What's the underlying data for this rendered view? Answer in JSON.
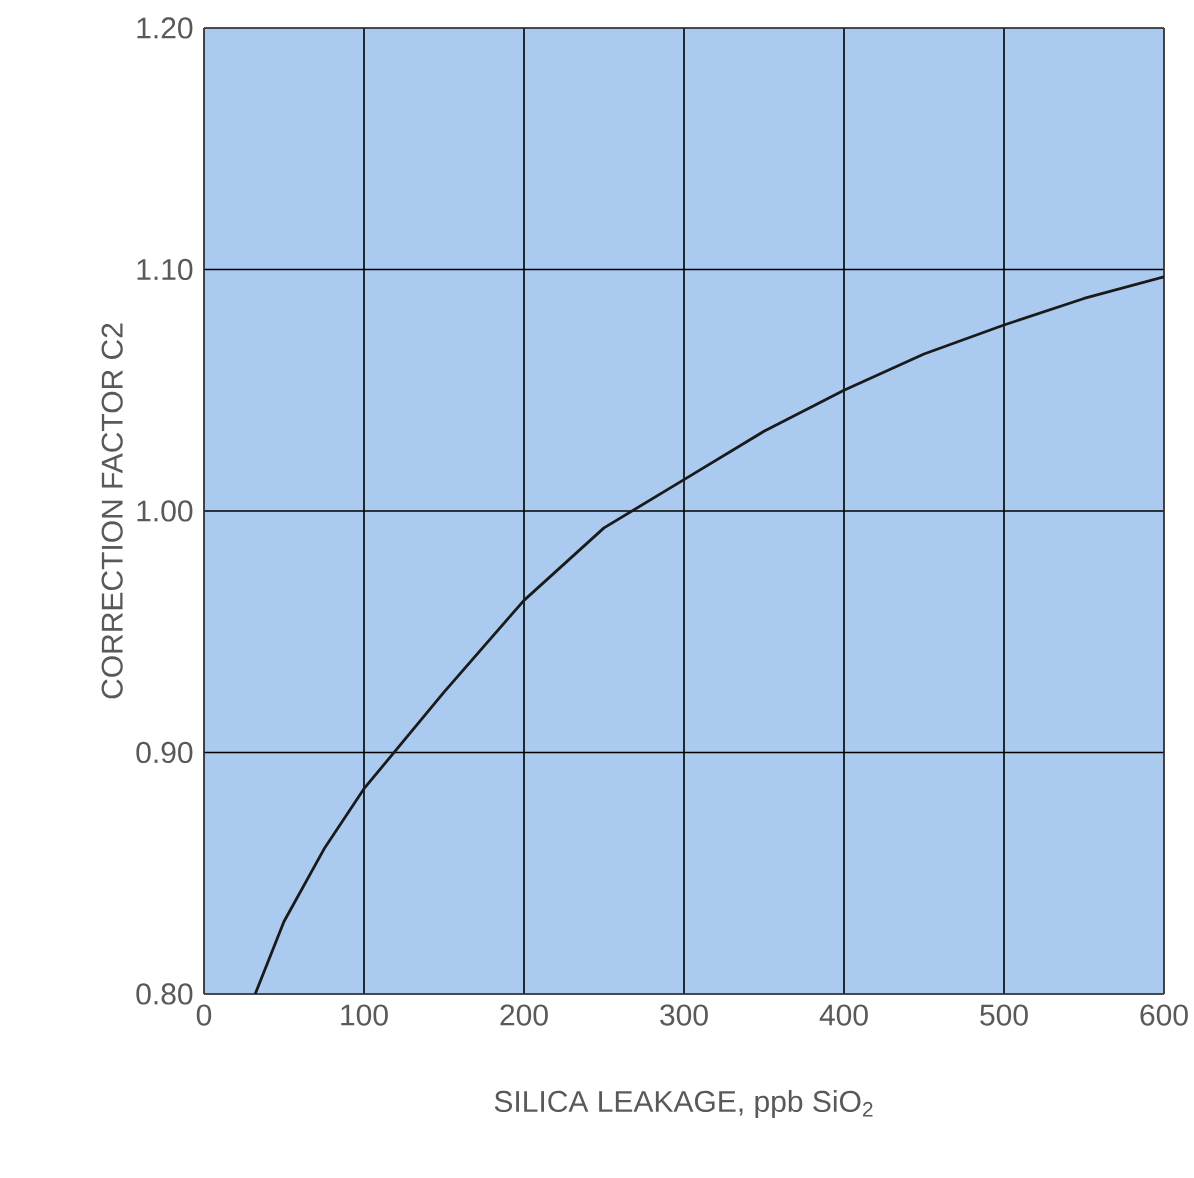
{
  "chart_data": {
    "type": "line",
    "xlabel": "SILICA LEAKAGE, ppb SiO$_{2}$",
    "ylabel": "CORRECTION FACTOR C2",
    "x": [
      32,
      50,
      75,
      100,
      125,
      150,
      200,
      250,
      300,
      350,
      400,
      450,
      500,
      550,
      600
    ],
    "series": [
      {
        "color": "#1a1a1a",
        "values": [
          0.8,
          0.83,
          0.86,
          0.885,
          0.905,
          0.925,
          0.963,
          0.993,
          1.013,
          1.033,
          1.05,
          1.065,
          1.077,
          1.088,
          1.097
        ]
      }
    ],
    "xlim": [
      0,
      600
    ],
    "ylim": [
      0.8,
      1.2
    ],
    "xticks": [
      0,
      100,
      200,
      300,
      400,
      500,
      600
    ],
    "yticks": [
      {
        "value": 0.8,
        "label": "0.80"
      },
      {
        "value": 0.9,
        "label": "0.90"
      },
      {
        "value": 1.0,
        "label": "1.00"
      },
      {
        "value": 1.1,
        "label": "1.10"
      },
      {
        "value": 1.2,
        "label": "1.20"
      }
    ],
    "grid": true,
    "marker": "none",
    "line_style": "solid"
  }
}
